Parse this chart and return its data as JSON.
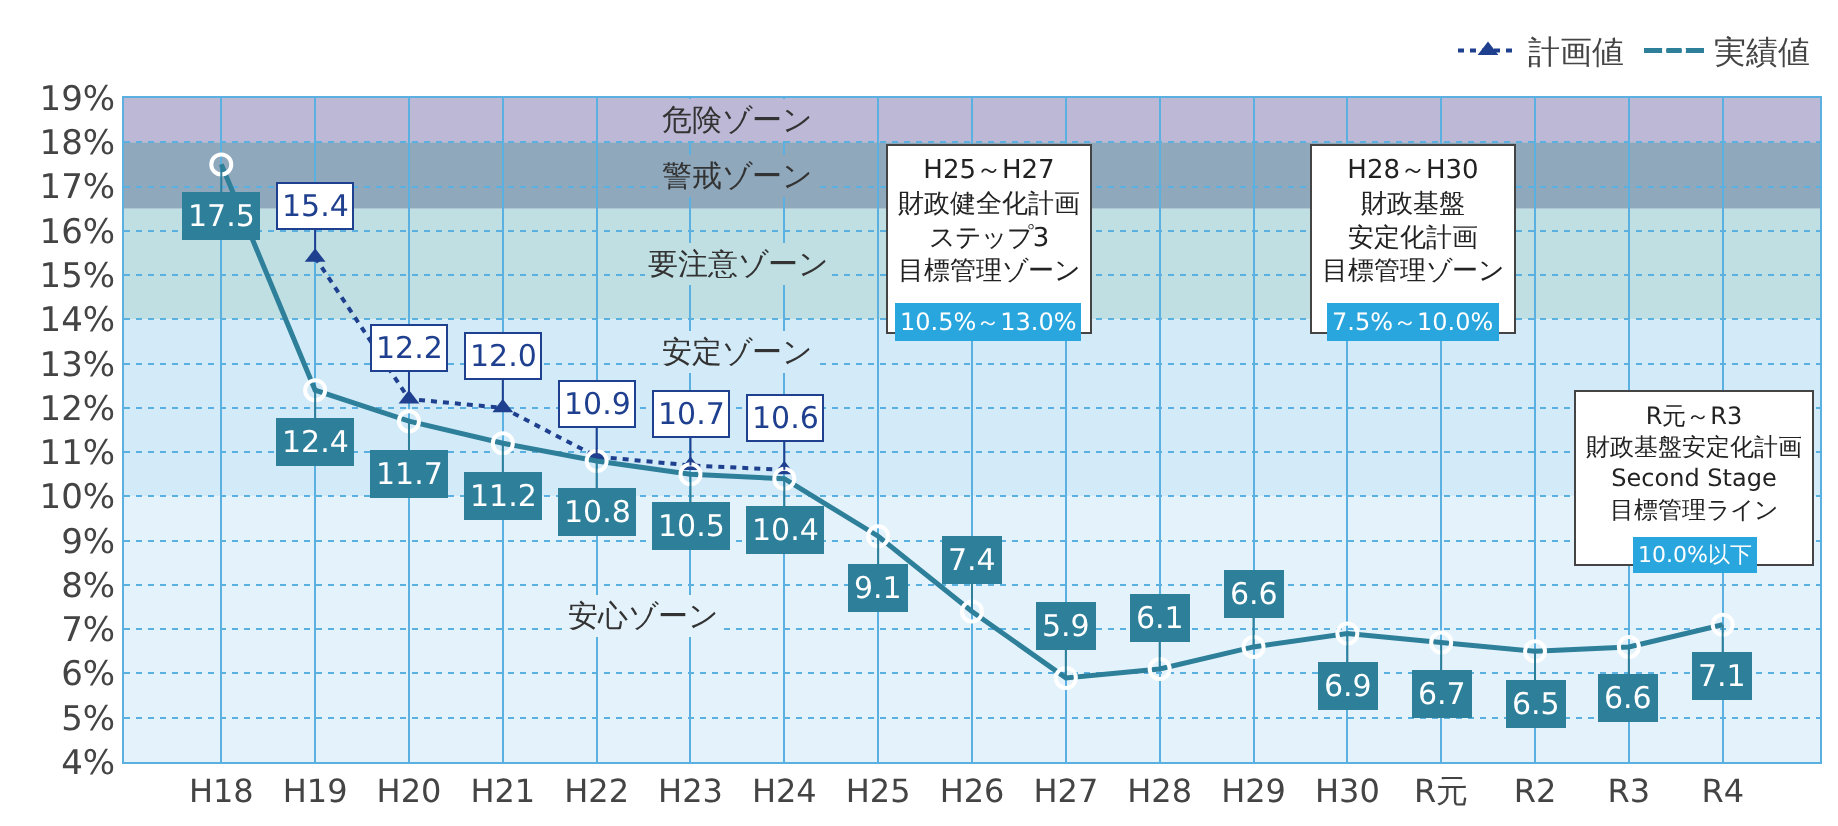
{
  "chart_data": {
    "type": "line",
    "categories": [
      "H18",
      "H19",
      "H20",
      "H21",
      "H22",
      "H23",
      "H24",
      "H25",
      "H26",
      "H27",
      "H28",
      "H29",
      "H30",
      "R元",
      "R2",
      "R3",
      "R4"
    ],
    "series": [
      {
        "name": "計画値",
        "color": "#1f3f8f",
        "line_style": "dotted",
        "marker": "triangle",
        "values": [
          null,
          15.4,
          12.2,
          12.0,
          10.9,
          10.7,
          10.6,
          null,
          null,
          null,
          null,
          null,
          null,
          null,
          null,
          null,
          null
        ],
        "value_labels": [
          null,
          "15.4",
          "12.2",
          "12.0",
          "10.9",
          "10.7",
          "10.6",
          null,
          null,
          null,
          null,
          null,
          null,
          null,
          null,
          null,
          null
        ]
      },
      {
        "name": "実績値",
        "color": "#2e7f9a",
        "line_style": "solid",
        "marker": "circle",
        "values": [
          17.5,
          12.4,
          11.7,
          11.2,
          10.8,
          10.5,
          10.4,
          9.1,
          7.4,
          5.9,
          6.1,
          6.6,
          6.9,
          6.7,
          6.5,
          6.6,
          7.1
        ],
        "value_labels": [
          "17.5",
          "12.4",
          "11.7",
          "11.2",
          "10.8",
          "10.5",
          "10.4",
          "9.1",
          "7.4",
          "5.9",
          "6.1",
          "6.6",
          "6.9",
          "6.7",
          "6.5",
          "6.6",
          "7.1"
        ]
      }
    ],
    "ylim": [
      4,
      19
    ],
    "yticks": [
      {
        "value": 4,
        "label": "4%"
      },
      {
        "value": 5,
        "label": "5%"
      },
      {
        "value": 6,
        "label": "6%"
      },
      {
        "value": 7,
        "label": "7%"
      },
      {
        "value": 8,
        "label": "8%"
      },
      {
        "value": 9,
        "label": "9%"
      },
      {
        "value": 10,
        "label": "10%"
      },
      {
        "value": 11,
        "label": "11%"
      },
      {
        "value": 12,
        "label": "12%"
      },
      {
        "value": 13,
        "label": "13%"
      },
      {
        "value": 14,
        "label": "14%"
      },
      {
        "value": 15,
        "label": "15%"
      },
      {
        "value": 16,
        "label": "16%"
      },
      {
        "value": 17,
        "label": "17%"
      },
      {
        "value": 18,
        "label": "18%"
      },
      {
        "value": 19,
        "label": "19%"
      }
    ],
    "bands": [
      {
        "axis": "y",
        "from": 18,
        "to": 19,
        "label": "危険ゾーン",
        "color": "#bdb8d5"
      },
      {
        "axis": "y",
        "from": 16.5,
        "to": 18,
        "label": "警戒ゾーン",
        "color": "#8fa8bc"
      },
      {
        "axis": "y",
        "from": 14,
        "to": 16.5,
        "label": "要注意ゾーン",
        "color": "#bfdfe3"
      },
      {
        "axis": "y",
        "from": 10,
        "to": 14,
        "label": "安定ゾーン",
        "color": "#d3ebf8"
      },
      {
        "axis": "y",
        "from": 4,
        "to": 10,
        "label": "安心ゾーン",
        "color": "#e4f3fb"
      }
    ],
    "annotations": [
      "H25～H27\n財政健全化計画ステップ3目標管理ゾーン\n10.5%～13.0%",
      "H28～H30\n財政基盤安定化計画目標管理ゾーン\n7.5%～10.0%",
      "R元～R3\n財政基盤安定化計画\nSecond Stage\n目標管理ライン\n10.0%以下"
    ],
    "grid": true,
    "legend": "top right"
  }
}
